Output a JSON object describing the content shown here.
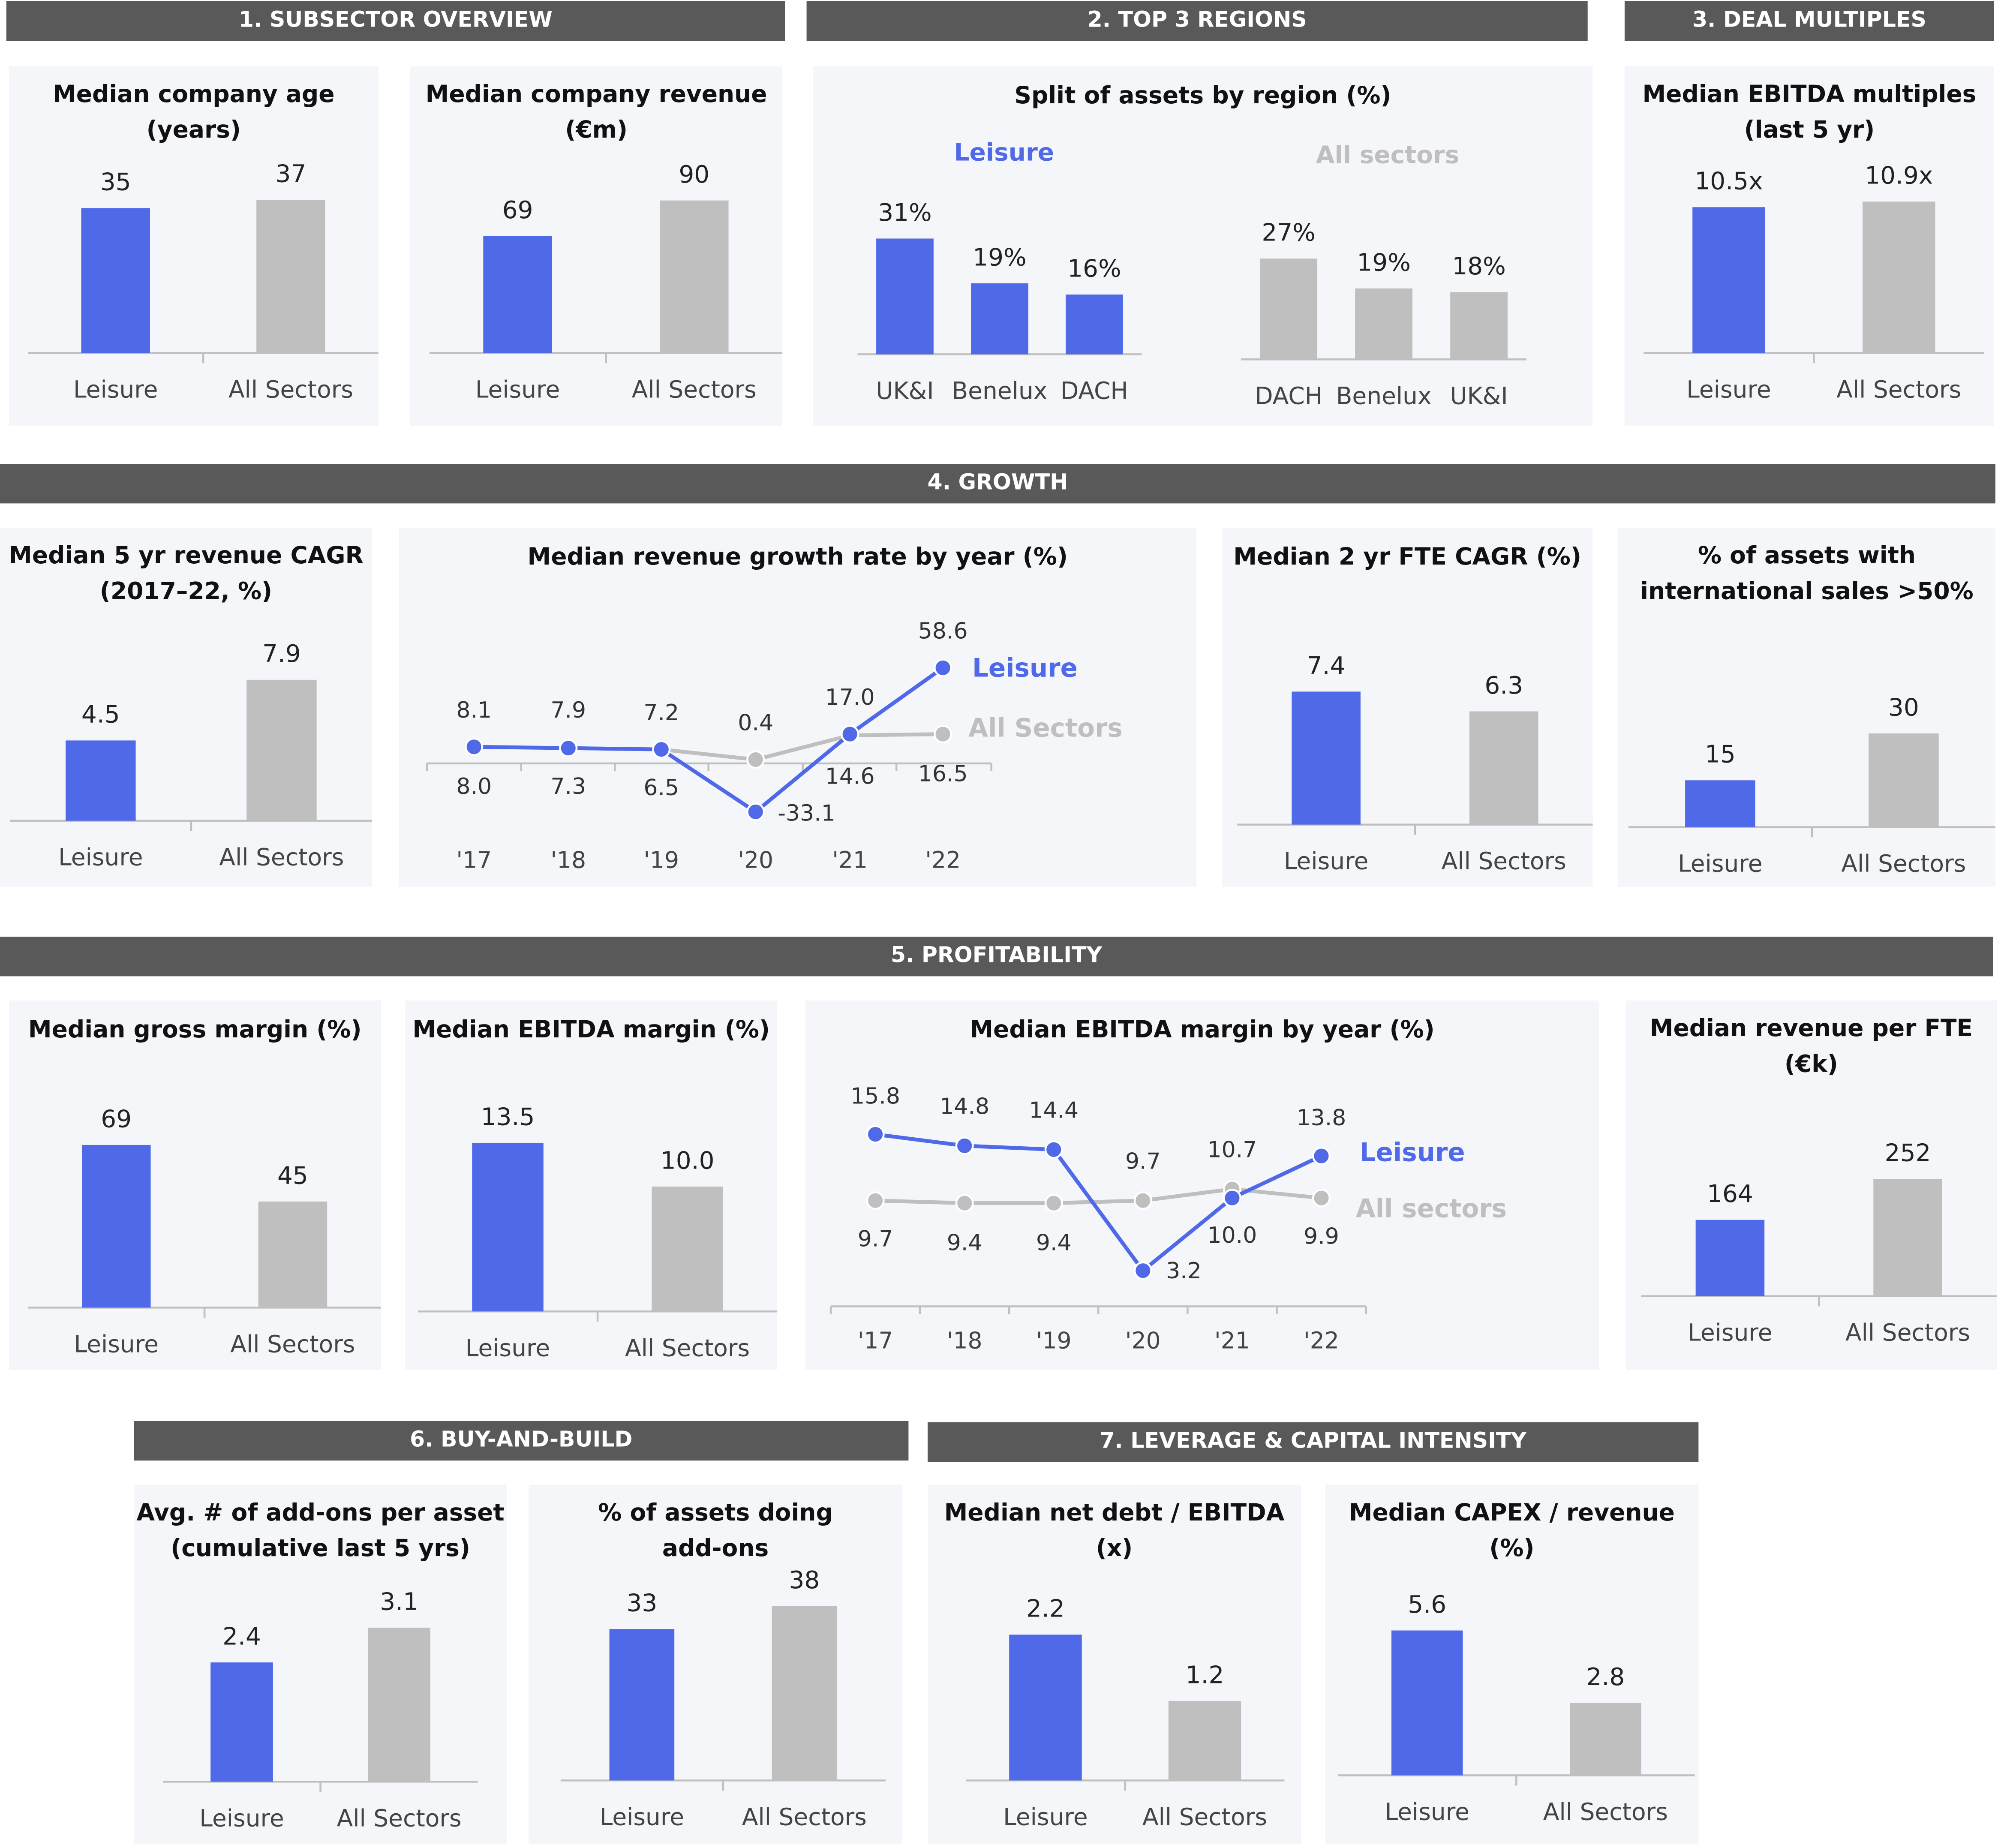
{
  "colors": {
    "leisure": "#5069e8",
    "all": "#bfbfbf",
    "header_bg": "#595959",
    "panel_bg": "#f4f6fa"
  },
  "headers": [
    {
      "id": "h1",
      "label": "1. SUBSECTOR OVERVIEW"
    },
    {
      "id": "h2",
      "label": "2. TOP 3 REGIONS"
    },
    {
      "id": "h3",
      "label": "3. DEAL MULTIPLES"
    },
    {
      "id": "h4",
      "label": "4. GROWTH"
    },
    {
      "id": "h5",
      "label": "5.  PROFITABILITY"
    },
    {
      "id": "h6",
      "label": "6. BUY-AND-BUILD"
    },
    {
      "id": "h7",
      "label": "7. LEVERAGE & CAPITAL INTENSITY"
    }
  ],
  "chart_data": [
    {
      "id": "age",
      "type": "bar",
      "title": [
        "Median company age",
        "(years)"
      ],
      "categories": [
        "Leisure",
        "All Sectors"
      ],
      "values": [
        35,
        37
      ],
      "labels": [
        "35",
        "37"
      ]
    },
    {
      "id": "revenue",
      "type": "bar",
      "title": [
        "Median company revenue",
        "(€m)"
      ],
      "categories": [
        "Leisure",
        "All Sectors"
      ],
      "values": [
        69,
        90
      ],
      "labels": [
        "69",
        "90"
      ]
    },
    {
      "id": "regions",
      "type": "bar",
      "title": [
        "Split of assets by region (%)"
      ],
      "series": [
        {
          "name": "Leisure",
          "categories": [
            "UK&I",
            "Benelux",
            "DACH"
          ],
          "values": [
            31,
            19,
            16
          ],
          "labels": [
            "31%",
            "19%",
            "16%"
          ]
        },
        {
          "name": "All sectors",
          "categories": [
            "DACH",
            "Benelux",
            "UK&I"
          ],
          "values": [
            27,
            19,
            18
          ],
          "labels": [
            "27%",
            "19%",
            "18%"
          ]
        }
      ]
    },
    {
      "id": "multiples",
      "type": "bar",
      "title": [
        "Median EBITDA multiples",
        "(last 5 yr)"
      ],
      "categories": [
        "Leisure",
        "All Sectors"
      ],
      "values": [
        10.5,
        10.9
      ],
      "labels": [
        "10.5x",
        "10.9x"
      ]
    },
    {
      "id": "cagr5",
      "type": "bar",
      "title": [
        "Median 5 yr revenue CAGR",
        "(2017–22, %)"
      ],
      "categories": [
        "Leisure",
        "All Sectors"
      ],
      "values": [
        4.5,
        7.9
      ],
      "labels": [
        "4.5",
        "7.9"
      ]
    },
    {
      "id": "growth_line",
      "type": "line",
      "title": [
        "Median revenue growth rate by year (%)"
      ],
      "x": [
        "'17",
        "'18",
        "'19",
        "'20",
        "'21",
        "'22"
      ],
      "series": [
        {
          "name": "Leisure",
          "values": [
            8.1,
            7.9,
            7.2,
            -33.1,
            17.0,
            58.6
          ],
          "labels": [
            "8.1",
            "7.9",
            "7.2",
            "-33.1",
            "17.0",
            "58.6"
          ]
        },
        {
          "name": "All Sectors",
          "values": [
            8.0,
            7.3,
            6.5,
            0.4,
            14.6,
            16.5
          ],
          "labels": [
            "8.0",
            "7.3",
            "6.5",
            "0.4",
            "14.6",
            "16.5"
          ]
        }
      ]
    },
    {
      "id": "fte_cagr",
      "type": "bar",
      "title": [
        "Median 2 yr FTE CAGR (%)"
      ],
      "categories": [
        "Leisure",
        "All Sectors"
      ],
      "values": [
        7.4,
        6.3
      ],
      "labels": [
        "7.4",
        "6.3"
      ]
    },
    {
      "id": "intl",
      "type": "bar",
      "title": [
        "% of assets with",
        "international sales >50%"
      ],
      "categories": [
        "Leisure",
        "All Sectors"
      ],
      "values": [
        15,
        30
      ],
      "labels": [
        "15",
        "30"
      ]
    },
    {
      "id": "gross",
      "type": "bar",
      "title": [
        "Median gross margin (%)"
      ],
      "categories": [
        "Leisure",
        "All Sectors"
      ],
      "values": [
        69,
        45
      ],
      "labels": [
        "69",
        "45"
      ]
    },
    {
      "id": "ebitda_margin",
      "type": "bar",
      "title": [
        "Median EBITDA margin (%)"
      ],
      "categories": [
        "Leisure",
        "All Sectors"
      ],
      "values": [
        13.5,
        10.0
      ],
      "labels": [
        "13.5",
        "10.0"
      ]
    },
    {
      "id": "ebitda_line",
      "type": "line",
      "title": [
        "Median EBITDA margin by year (%)"
      ],
      "x": [
        "'17",
        "'18",
        "'19",
        "'20",
        "'21",
        "'22"
      ],
      "series": [
        {
          "name": "Leisure",
          "values": [
            15.8,
            14.8,
            14.4,
            3.2,
            10.0,
            13.8
          ],
          "labels": [
            "15.8",
            "14.8",
            "14.4",
            "3.2",
            "10.0",
            "13.8"
          ]
        },
        {
          "name": "All sectors",
          "values": [
            9.7,
            9.4,
            9.4,
            9.7,
            10.7,
            9.9
          ],
          "labels": [
            "9.7",
            "9.4",
            "9.4",
            "9.7",
            "10.7",
            "9.9"
          ]
        }
      ]
    },
    {
      "id": "rev_fte",
      "type": "bar",
      "title": [
        "Median revenue per FTE",
        "(€k)"
      ],
      "categories": [
        "Leisure",
        "All Sectors"
      ],
      "values": [
        164,
        252
      ],
      "labels": [
        "164",
        "252"
      ]
    },
    {
      "id": "addons",
      "type": "bar",
      "title": [
        "Avg. # of add-ons per asset",
        "(cumulative last 5 yrs)"
      ],
      "categories": [
        "Leisure",
        "All Sectors"
      ],
      "values": [
        2.4,
        3.1
      ],
      "labels": [
        "2.4",
        "3.1"
      ]
    },
    {
      "id": "addon_pct",
      "type": "bar",
      "title": [
        "% of assets doing",
        "add-ons"
      ],
      "categories": [
        "Leisure",
        "All Sectors"
      ],
      "values": [
        33,
        38
      ],
      "labels": [
        "33",
        "38"
      ]
    },
    {
      "id": "net_debt",
      "type": "bar",
      "title": [
        "Median net debt / EBITDA",
        "(x)"
      ],
      "categories": [
        "Leisure",
        "All Sectors"
      ],
      "values": [
        2.2,
        1.2
      ],
      "labels": [
        "2.2",
        "1.2"
      ]
    },
    {
      "id": "capex",
      "type": "bar",
      "title": [
        "Median CAPEX / revenue",
        "(%)"
      ],
      "categories": [
        "Leisure",
        "All Sectors"
      ],
      "values": [
        5.6,
        2.8
      ],
      "labels": [
        "5.6",
        "2.8"
      ]
    }
  ]
}
